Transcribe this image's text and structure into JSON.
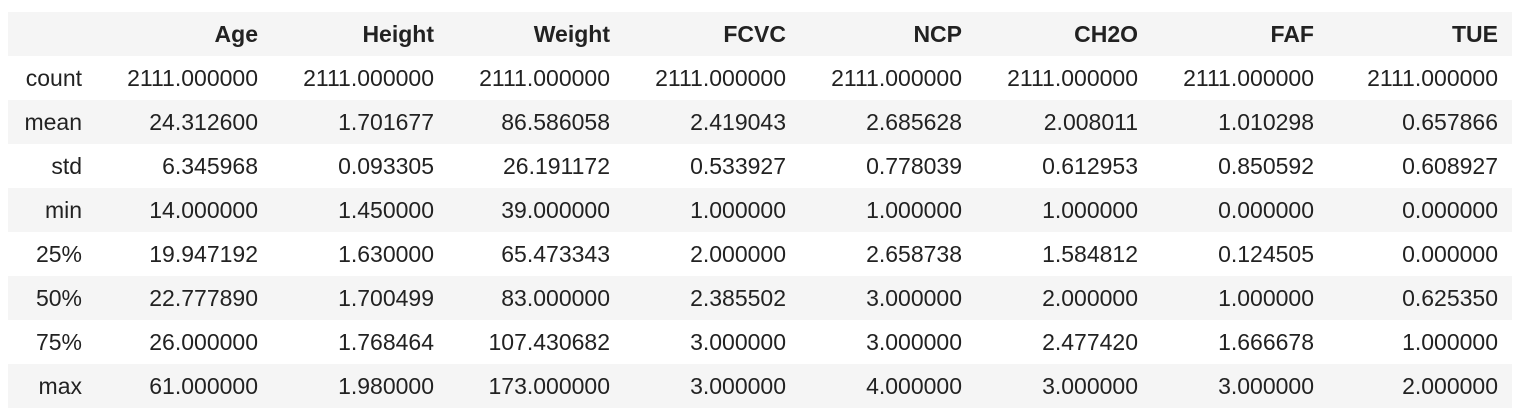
{
  "table": {
    "index_header": "",
    "columns": [
      "Age",
      "Height",
      "Weight",
      "FCVC",
      "NCP",
      "CH2O",
      "FAF",
      "TUE"
    ],
    "rows": [
      {
        "label": "count",
        "values": [
          "2111.000000",
          "2111.000000",
          "2111.000000",
          "2111.000000",
          "2111.000000",
          "2111.000000",
          "2111.000000",
          "2111.000000"
        ]
      },
      {
        "label": "mean",
        "values": [
          "24.312600",
          "1.701677",
          "86.586058",
          "2.419043",
          "2.685628",
          "2.008011",
          "1.010298",
          "0.657866"
        ]
      },
      {
        "label": "std",
        "values": [
          "6.345968",
          "0.093305",
          "26.191172",
          "0.533927",
          "0.778039",
          "0.612953",
          "0.850592",
          "0.608927"
        ]
      },
      {
        "label": "min",
        "values": [
          "14.000000",
          "1.450000",
          "39.000000",
          "1.000000",
          "1.000000",
          "1.000000",
          "0.000000",
          "0.000000"
        ]
      },
      {
        "label": "25%",
        "values": [
          "19.947192",
          "1.630000",
          "65.473343",
          "2.000000",
          "2.658738",
          "1.584812",
          "0.124505",
          "0.000000"
        ]
      },
      {
        "label": "50%",
        "values": [
          "22.777890",
          "1.700499",
          "83.000000",
          "2.385502",
          "3.000000",
          "2.000000",
          "1.000000",
          "0.625350"
        ]
      },
      {
        "label": "75%",
        "values": [
          "26.000000",
          "1.768464",
          "107.430682",
          "3.000000",
          "3.000000",
          "2.477420",
          "1.666678",
          "1.000000"
        ]
      },
      {
        "label": "max",
        "values": [
          "61.000000",
          "1.980000",
          "173.000000",
          "3.000000",
          "4.000000",
          "3.000000",
          "3.000000",
          "2.000000"
        ]
      }
    ]
  }
}
